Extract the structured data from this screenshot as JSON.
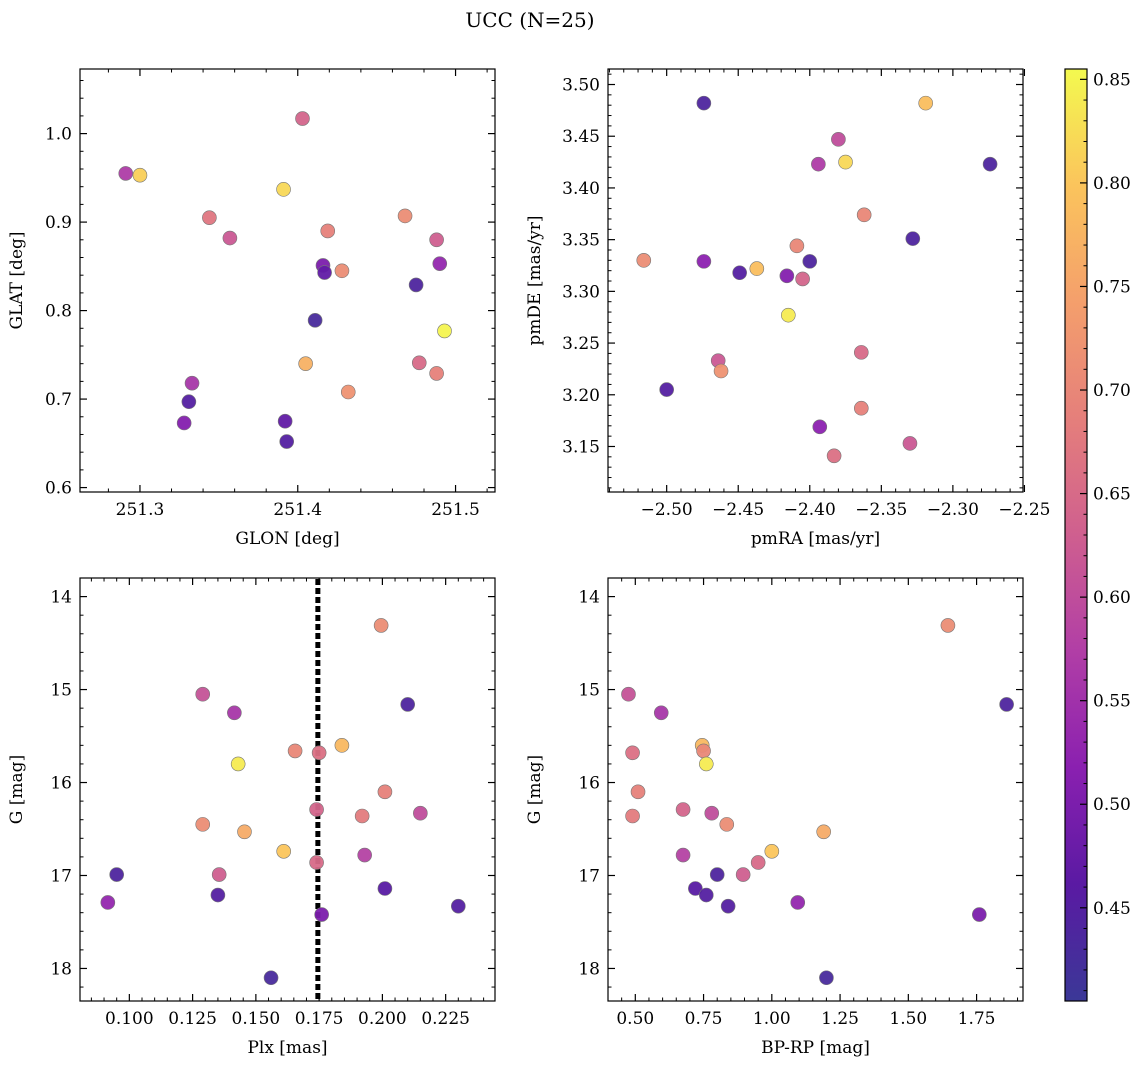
{
  "figure": {
    "title": "UCC (N=25)"
  },
  "colorbar": {
    "colormap": "plasma",
    "range": [
      0.405,
      0.855
    ],
    "ticks": [
      0.45,
      0.5,
      0.55,
      0.6,
      0.65,
      0.7,
      0.75,
      0.8,
      0.85
    ],
    "tick_labels": [
      "0.45",
      "0.50",
      "0.55",
      "0.60",
      "0.65",
      "0.70",
      "0.75",
      "0.80",
      "0.85"
    ]
  },
  "chart_data": [
    {
      "type": "scatter",
      "xlabel": "GLON [deg]",
      "ylabel": "GLAT [deg]",
      "xlim": [
        251.262,
        251.525
      ],
      "ylim": [
        0.595,
        1.073
      ],
      "y_inverted": false,
      "xticks": [
        251.3,
        251.4,
        251.5
      ],
      "xtick_labels": [
        "251.3",
        "251.4",
        "251.5"
      ],
      "yticks": [
        0.6,
        0.7,
        0.8,
        0.9,
        1.0
      ],
      "ytick_labels": [
        "0.6",
        "0.7",
        "0.8",
        "0.9",
        "1.0"
      ],
      "points": [
        {
          "x": 251.291,
          "y": 0.955,
          "c": 0.57
        },
        {
          "x": 251.3,
          "y": 0.953,
          "c": 0.81
        },
        {
          "x": 251.344,
          "y": 0.905,
          "c": 0.67
        },
        {
          "x": 251.357,
          "y": 0.882,
          "c": 0.62
        },
        {
          "x": 251.403,
          "y": 1.017,
          "c": 0.64
        },
        {
          "x": 251.391,
          "y": 0.937,
          "c": 0.82
        },
        {
          "x": 251.419,
          "y": 0.89,
          "c": 0.69
        },
        {
          "x": 251.428,
          "y": 0.845,
          "c": 0.71
        },
        {
          "x": 251.416,
          "y": 0.851,
          "c": 0.5
        },
        {
          "x": 251.417,
          "y": 0.843,
          "c": 0.47
        },
        {
          "x": 251.411,
          "y": 0.789,
          "c": 0.43
        },
        {
          "x": 251.468,
          "y": 0.907,
          "c": 0.71
        },
        {
          "x": 251.488,
          "y": 0.88,
          "c": 0.63
        },
        {
          "x": 251.49,
          "y": 0.853,
          "c": 0.53
        },
        {
          "x": 251.475,
          "y": 0.829,
          "c": 0.44
        },
        {
          "x": 251.493,
          "y": 0.777,
          "c": 0.85
        },
        {
          "x": 251.477,
          "y": 0.741,
          "c": 0.65
        },
        {
          "x": 251.488,
          "y": 0.729,
          "c": 0.69
        },
        {
          "x": 251.405,
          "y": 0.74,
          "c": 0.77
        },
        {
          "x": 251.432,
          "y": 0.708,
          "c": 0.72
        },
        {
          "x": 251.333,
          "y": 0.718,
          "c": 0.56
        },
        {
          "x": 251.331,
          "y": 0.697,
          "c": 0.45
        },
        {
          "x": 251.328,
          "y": 0.673,
          "c": 0.51
        },
        {
          "x": 251.392,
          "y": 0.675,
          "c": 0.47
        },
        {
          "x": 251.393,
          "y": 0.652,
          "c": 0.45
        }
      ]
    },
    {
      "type": "scatter",
      "xlabel": "pmRA [mas/yr]",
      "ylabel": "pmDE [mas/yr]",
      "xlim": [
        -2.541,
        -2.251
      ],
      "ylim": [
        3.106,
        3.515
      ],
      "y_inverted": false,
      "xticks": [
        -2.5,
        -2.45,
        -2.4,
        -2.35,
        -2.3,
        -2.25
      ],
      "xtick_labels": [
        "−2.50",
        "−2.45",
        "−2.40",
        "−2.35",
        "−2.30",
        "−2.25"
      ],
      "yticks": [
        3.15,
        3.2,
        3.25,
        3.3,
        3.35,
        3.4,
        3.45,
        3.5
      ],
      "ytick_labels": [
        "3.15",
        "3.20",
        "3.25",
        "3.30",
        "3.35",
        "3.40",
        "3.45",
        "3.50"
      ],
      "points": [
        {
          "x": -2.474,
          "y": 3.482,
          "c": 0.44
        },
        {
          "x": -2.319,
          "y": 3.482,
          "c": 0.79
        },
        {
          "x": -2.38,
          "y": 3.447,
          "c": 0.6
        },
        {
          "x": -2.394,
          "y": 3.423,
          "c": 0.57
        },
        {
          "x": -2.375,
          "y": 3.425,
          "c": 0.82
        },
        {
          "x": -2.274,
          "y": 3.423,
          "c": 0.44
        },
        {
          "x": -2.362,
          "y": 3.374,
          "c": 0.7
        },
        {
          "x": -2.328,
          "y": 3.351,
          "c": 0.44
        },
        {
          "x": -2.409,
          "y": 3.344,
          "c": 0.7
        },
        {
          "x": -2.4,
          "y": 3.329,
          "c": 0.44
        },
        {
          "x": -2.516,
          "y": 3.33,
          "c": 0.71
        },
        {
          "x": -2.474,
          "y": 3.329,
          "c": 0.52
        },
        {
          "x": -2.449,
          "y": 3.318,
          "c": 0.45
        },
        {
          "x": -2.437,
          "y": 3.322,
          "c": 0.79
        },
        {
          "x": -2.416,
          "y": 3.315,
          "c": 0.51
        },
        {
          "x": -2.405,
          "y": 3.312,
          "c": 0.64
        },
        {
          "x": -2.415,
          "y": 3.277,
          "c": 0.84
        },
        {
          "x": -2.464,
          "y": 3.233,
          "c": 0.62
        },
        {
          "x": -2.462,
          "y": 3.223,
          "c": 0.72
        },
        {
          "x": -2.364,
          "y": 3.241,
          "c": 0.65
        },
        {
          "x": -2.5,
          "y": 3.205,
          "c": 0.45
        },
        {
          "x": -2.364,
          "y": 3.187,
          "c": 0.69
        },
        {
          "x": -2.393,
          "y": 3.169,
          "c": 0.52
        },
        {
          "x": -2.33,
          "y": 3.153,
          "c": 0.62
        },
        {
          "x": -2.383,
          "y": 3.141,
          "c": 0.66
        }
      ]
    },
    {
      "type": "scatter",
      "xlabel": "Plx [mas]",
      "ylabel": "G [mag]",
      "xlim": [
        0.0805,
        0.2445
      ],
      "ylim": [
        18.35,
        13.8
      ],
      "y_inverted": true,
      "xticks": [
        0.1,
        0.125,
        0.15,
        0.175,
        0.2,
        0.225
      ],
      "xtick_labels": [
        "0.100",
        "0.125",
        "0.150",
        "0.175",
        "0.200",
        "0.225"
      ],
      "yticks": [
        14,
        15,
        16,
        17,
        18
      ],
      "ytick_labels": [
        "14",
        "15",
        "16",
        "17",
        "18"
      ],
      "vline": 0.1745,
      "points": [
        {
          "x": 0.1995,
          "y": 14.31,
          "c": 0.71
        },
        {
          "x": 0.129,
          "y": 15.05,
          "c": 0.61
        },
        {
          "x": 0.21,
          "y": 15.16,
          "c": 0.44
        },
        {
          "x": 0.1415,
          "y": 15.25,
          "c": 0.56
        },
        {
          "x": 0.184,
          "y": 15.6,
          "c": 0.78
        },
        {
          "x": 0.1655,
          "y": 15.66,
          "c": 0.7
        },
        {
          "x": 0.175,
          "y": 15.68,
          "c": 0.66
        },
        {
          "x": 0.143,
          "y": 15.8,
          "c": 0.84
        },
        {
          "x": 0.201,
          "y": 16.1,
          "c": 0.69
        },
        {
          "x": 0.174,
          "y": 16.29,
          "c": 0.64
        },
        {
          "x": 0.215,
          "y": 16.33,
          "c": 0.6
        },
        {
          "x": 0.192,
          "y": 16.36,
          "c": 0.68
        },
        {
          "x": 0.129,
          "y": 16.45,
          "c": 0.71
        },
        {
          "x": 0.1455,
          "y": 16.53,
          "c": 0.76
        },
        {
          "x": 0.161,
          "y": 16.74,
          "c": 0.8
        },
        {
          "x": 0.193,
          "y": 16.78,
          "c": 0.58
        },
        {
          "x": 0.174,
          "y": 16.86,
          "c": 0.65
        },
        {
          "x": 0.095,
          "y": 16.99,
          "c": 0.44
        },
        {
          "x": 0.1355,
          "y": 16.99,
          "c": 0.63
        },
        {
          "x": 0.201,
          "y": 17.14,
          "c": 0.46
        },
        {
          "x": 0.135,
          "y": 17.21,
          "c": 0.45
        },
        {
          "x": 0.0915,
          "y": 17.29,
          "c": 0.53
        },
        {
          "x": 0.23,
          "y": 17.33,
          "c": 0.45
        },
        {
          "x": 0.176,
          "y": 17.42,
          "c": 0.5
        },
        {
          "x": 0.156,
          "y": 18.1,
          "c": 0.43
        }
      ]
    },
    {
      "type": "scatter",
      "xlabel": "BP-RP [mag]",
      "ylabel": "G [mag]",
      "xlim": [
        0.4,
        1.92
      ],
      "ylim": [
        18.35,
        13.8
      ],
      "y_inverted": true,
      "xticks": [
        0.5,
        0.75,
        1.0,
        1.25,
        1.5,
        1.75
      ],
      "xtick_labels": [
        "0.50",
        "0.75",
        "1.00",
        "1.25",
        "1.50",
        "1.75"
      ],
      "yticks": [
        14,
        15,
        16,
        17,
        18
      ],
      "ytick_labels": [
        "14",
        "15",
        "16",
        "17",
        "18"
      ],
      "points": [
        {
          "x": 1.645,
          "y": 14.31,
          "c": 0.71
        },
        {
          "x": 0.475,
          "y": 15.05,
          "c": 0.61
        },
        {
          "x": 1.86,
          "y": 15.16,
          "c": 0.44
        },
        {
          "x": 0.595,
          "y": 15.25,
          "c": 0.56
        },
        {
          "x": 0.745,
          "y": 15.6,
          "c": 0.78
        },
        {
          "x": 0.75,
          "y": 15.66,
          "c": 0.7
        },
        {
          "x": 0.49,
          "y": 15.68,
          "c": 0.66
        },
        {
          "x": 0.76,
          "y": 15.8,
          "c": 0.84
        },
        {
          "x": 0.51,
          "y": 16.1,
          "c": 0.69
        },
        {
          "x": 0.675,
          "y": 16.29,
          "c": 0.64
        },
        {
          "x": 0.78,
          "y": 16.33,
          "c": 0.6
        },
        {
          "x": 0.49,
          "y": 16.36,
          "c": 0.68
        },
        {
          "x": 0.835,
          "y": 16.45,
          "c": 0.71
        },
        {
          "x": 1.19,
          "y": 16.53,
          "c": 0.76
        },
        {
          "x": 1.0,
          "y": 16.74,
          "c": 0.8
        },
        {
          "x": 0.675,
          "y": 16.78,
          "c": 0.58
        },
        {
          "x": 0.95,
          "y": 16.86,
          "c": 0.65
        },
        {
          "x": 0.8,
          "y": 16.99,
          "c": 0.44
        },
        {
          "x": 0.895,
          "y": 16.99,
          "c": 0.63
        },
        {
          "x": 0.72,
          "y": 17.14,
          "c": 0.46
        },
        {
          "x": 0.76,
          "y": 17.21,
          "c": 0.45
        },
        {
          "x": 1.095,
          "y": 17.29,
          "c": 0.53
        },
        {
          "x": 0.84,
          "y": 17.33,
          "c": 0.45
        },
        {
          "x": 1.76,
          "y": 17.42,
          "c": 0.5
        },
        {
          "x": 1.2,
          "y": 18.1,
          "c": 0.43
        }
      ]
    }
  ]
}
